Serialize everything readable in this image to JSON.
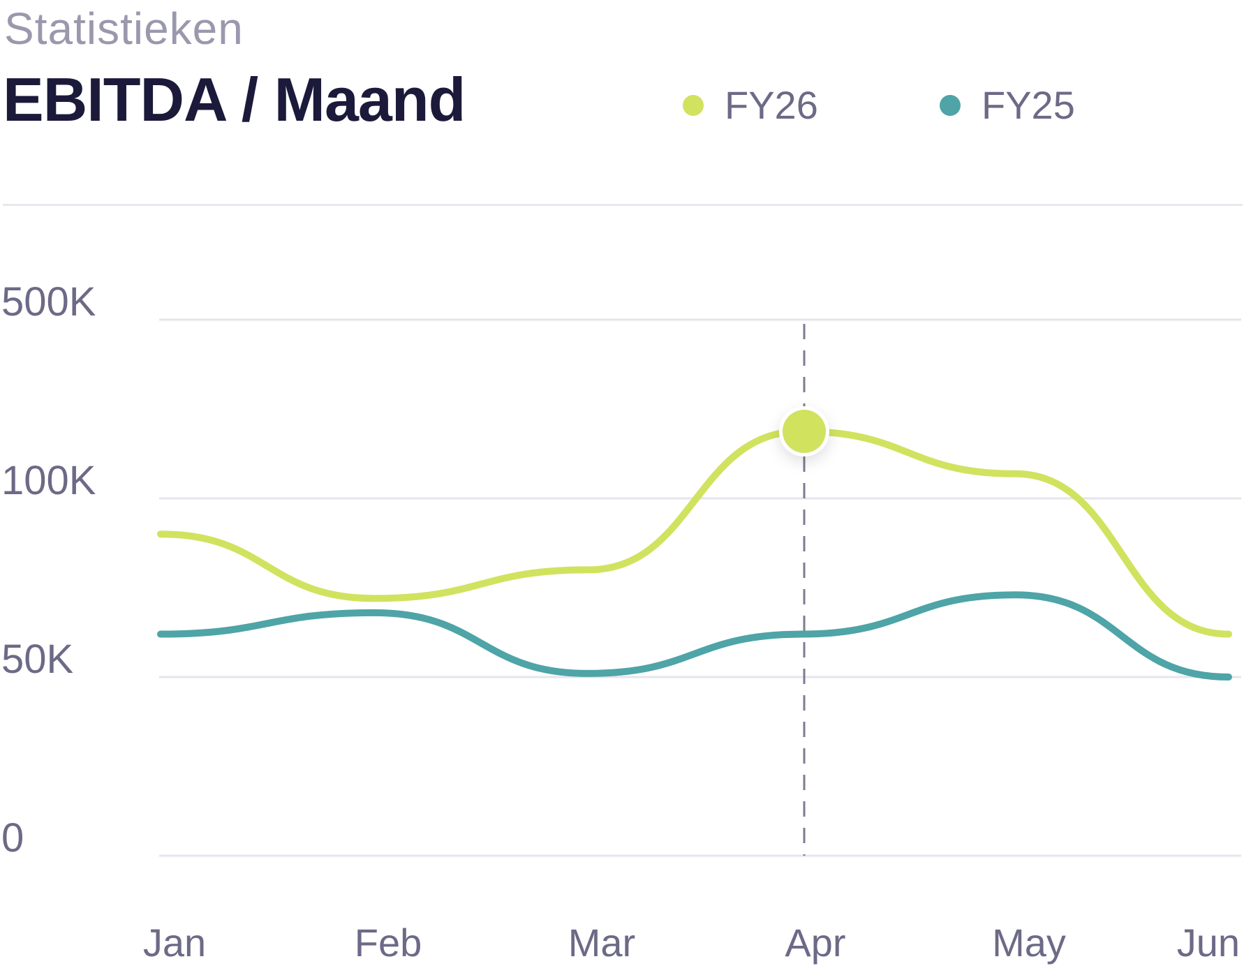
{
  "header": {
    "subtitle": "Statistieken",
    "title": "EBITDA / Maand"
  },
  "chart_data": {
    "type": "line",
    "categories": [
      "Jan",
      "Feb",
      "Mar",
      "Apr",
      "May",
      "Jun"
    ],
    "y_ticks": [
      {
        "label": "0",
        "value": 0
      },
      {
        "label": "50K",
        "value": 50000
      },
      {
        "label": "100K",
        "value": 100000
      },
      {
        "label": "500K",
        "value": 500000
      }
    ],
    "series": [
      {
        "name": "FY26",
        "color": "#d1e25f",
        "values": [
          90000,
          72000,
          80000,
          250000,
          155000,
          62000
        ]
      },
      {
        "name": "FY25",
        "color": "#4ea4a6",
        "values": [
          62000,
          68000,
          51000,
          62000,
          73000,
          50000
        ]
      }
    ],
    "highlight": {
      "series": "FY26",
      "category": "Apr"
    },
    "grid": true,
    "legend": "top-right"
  }
}
